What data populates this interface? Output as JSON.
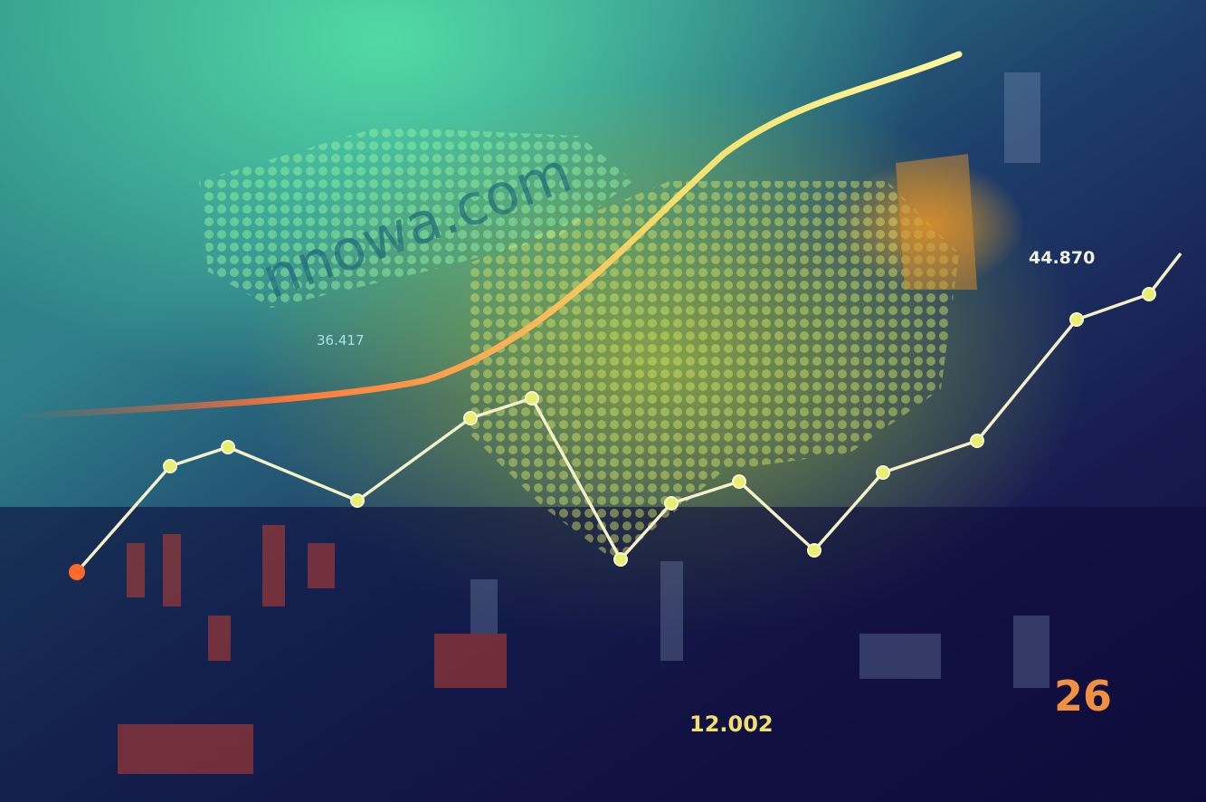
{
  "labels": {
    "upper_right": "44.870",
    "upper_left": "36.417",
    "bottom_center": "12.002",
    "bottom_right": "26"
  },
  "watermark": "nnowa.com"
}
